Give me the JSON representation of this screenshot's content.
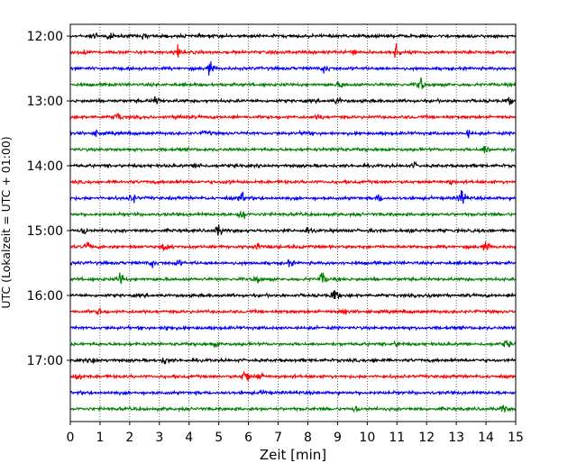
{
  "chart_data": {
    "type": "line",
    "subtype": "helicorder",
    "title": "",
    "xlabel": "Zeit  [min]",
    "ylabel": "UTC (Lokalzeit = UTC + 01:00)",
    "xlim": [
      0,
      15
    ],
    "x_ticks": [
      "0",
      "1",
      "2",
      "3",
      "4",
      "5",
      "6",
      "7",
      "8",
      "9",
      "10",
      "11",
      "12",
      "13",
      "14",
      "15"
    ],
    "x_grid": "vertical dotted at every minute",
    "y_tick_labels": [
      "12:00",
      "13:00",
      "14:00",
      "15:00",
      "16:00",
      "17:00"
    ],
    "trace_minutes": 15,
    "trace_count": 24,
    "trace_start": "12:00",
    "trace_color_cycle": [
      "#000000",
      "#ff0000",
      "#0000ff",
      "#008000"
    ],
    "series": [
      {
        "start": "12:00",
        "color": "#000000",
        "bursts": [
          [
            0.8,
            1.0
          ],
          [
            1.3,
            0.9
          ],
          [
            2.5,
            0.6
          ]
        ]
      },
      {
        "start": "12:15",
        "color": "#ff0000",
        "bursts": [
          [
            0.5,
            0.6
          ],
          [
            3.6,
            1.6
          ],
          [
            9.5,
            0.8
          ],
          [
            11.0,
            2.2
          ]
        ]
      },
      {
        "start": "12:30",
        "color": "#0000ff",
        "bursts": [
          [
            4.7,
            1.8
          ],
          [
            8.6,
            1.2
          ]
        ]
      },
      {
        "start": "12:45",
        "color": "#008000",
        "bursts": [
          [
            9.1,
            0.7
          ],
          [
            11.8,
            2.0
          ]
        ]
      },
      {
        "start": "13:00",
        "color": "#000000",
        "bursts": [
          [
            2.9,
            1.2
          ],
          [
            9.0,
            0.8
          ],
          [
            14.8,
            0.8
          ]
        ]
      },
      {
        "start": "13:15",
        "color": "#ff0000",
        "bursts": [
          [
            1.6,
            1.1
          ],
          [
            3.7,
            0.8
          ],
          [
            8.4,
            0.7
          ]
        ]
      },
      {
        "start": "13:30",
        "color": "#0000ff",
        "bursts": [
          [
            0.9,
            0.7
          ],
          [
            4.6,
            0.7
          ],
          [
            7.9,
            0.7
          ],
          [
            13.4,
            0.8
          ]
        ]
      },
      {
        "start": "13:45",
        "color": "#008000",
        "bursts": [
          [
            9.0,
            0.6
          ],
          [
            14.0,
            1.2
          ]
        ]
      },
      {
        "start": "14:00",
        "color": "#000000",
        "bursts": [
          [
            4.3,
            0.9
          ],
          [
            11.6,
            0.6
          ]
        ]
      },
      {
        "start": "14:15",
        "color": "#ff0000",
        "bursts": [
          [
            5.3,
            0.6
          ],
          [
            12.8,
            0.6
          ]
        ]
      },
      {
        "start": "14:30",
        "color": "#0000ff",
        "bursts": [
          [
            2.1,
            1.2
          ],
          [
            5.8,
            1.5
          ],
          [
            10.4,
            0.9
          ],
          [
            13.2,
            2.6
          ]
        ]
      },
      {
        "start": "14:45",
        "color": "#008000",
        "bursts": [
          [
            5.8,
            2.0
          ]
        ]
      },
      {
        "start": "15:00",
        "color": "#000000",
        "bursts": [
          [
            0.5,
            0.9
          ],
          [
            5.0,
            1.6
          ],
          [
            8.0,
            0.9
          ],
          [
            11.5,
            0.8
          ]
        ]
      },
      {
        "start": "15:15",
        "color": "#ff0000",
        "bursts": [
          [
            0.6,
            1.0
          ],
          [
            3.2,
            1.1
          ],
          [
            6.3,
            1.0
          ],
          [
            14.0,
            1.1
          ]
        ]
      },
      {
        "start": "15:30",
        "color": "#0000ff",
        "bursts": [
          [
            2.8,
            0.9
          ],
          [
            3.6,
            0.8
          ],
          [
            7.4,
            0.8
          ]
        ]
      },
      {
        "start": "15:45",
        "color": "#008000",
        "bursts": [
          [
            1.7,
            1.8
          ],
          [
            6.3,
            1.0
          ],
          [
            8.5,
            2.0
          ]
        ]
      },
      {
        "start": "16:00",
        "color": "#000000",
        "bursts": [
          [
            8.9,
            1.4
          ],
          [
            12.2,
            1.0
          ]
        ]
      },
      {
        "start": "16:15",
        "color": "#ff0000",
        "bursts": [
          [
            1.0,
            0.8
          ],
          [
            9.2,
            1.0
          ]
        ]
      },
      {
        "start": "16:30",
        "color": "#0000ff",
        "bursts": [
          [
            3.3,
            0.8
          ]
        ]
      },
      {
        "start": "16:45",
        "color": "#008000",
        "bursts": [
          [
            4.9,
            0.6
          ],
          [
            11.0,
            0.7
          ],
          [
            14.7,
            1.0
          ]
        ]
      },
      {
        "start": "17:00",
        "color": "#000000",
        "bursts": [
          [
            0.8,
            0.8
          ],
          [
            3.2,
            1.0
          ],
          [
            10.3,
            0.6
          ]
        ]
      },
      {
        "start": "17:15",
        "color": "#ff0000",
        "bursts": [
          [
            0.3,
            1.2
          ],
          [
            5.9,
            2.2
          ],
          [
            6.4,
            1.0
          ]
        ]
      },
      {
        "start": "17:30",
        "color": "#0000ff",
        "bursts": [
          [
            6.5,
            0.5
          ]
        ]
      },
      {
        "start": "17:45",
        "color": "#008000",
        "bursts": [
          [
            9.6,
            0.6
          ],
          [
            14.6,
            1.0
          ]
        ]
      }
    ]
  }
}
